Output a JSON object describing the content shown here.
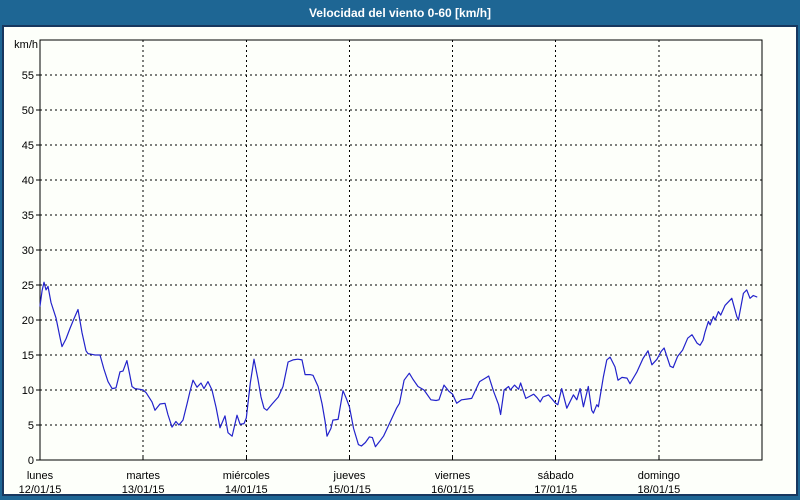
{
  "title": "Velocidad del viento 0-60 [km/h]",
  "colors": {
    "titlebar_bg": "#1e6694",
    "border": "#17375e",
    "panel_bg": "#fdfffa",
    "line": "#2323cb",
    "grid": "#000000",
    "text": "#000000"
  },
  "chart_data": {
    "type": "line",
    "title": "Velocidad del viento 0-60 [km/h]",
    "ylabel": "km/h",
    "xlabel": "",
    "ylim": [
      0,
      60
    ],
    "yticks": [
      0,
      5,
      10,
      15,
      20,
      25,
      30,
      35,
      40,
      45,
      50,
      55
    ],
    "grid": true,
    "legend": "none",
    "x_days": [
      {
        "name": "lunes",
        "date": "12/01/15"
      },
      {
        "name": "martes",
        "date": "13/01/15"
      },
      {
        "name": "miércoles",
        "date": "14/01/15"
      },
      {
        "name": "jueves",
        "date": "15/01/15"
      },
      {
        "name": "viernes",
        "date": "16/01/15"
      },
      {
        "name": "sábado",
        "date": "17/01/15"
      },
      {
        "name": "domingo",
        "date": "18/01/15"
      }
    ],
    "series": [
      {
        "name": "wind_speed_kmh",
        "color": "#2323cb",
        "points": [
          [
            0.0,
            22.0
          ],
          [
            0.02,
            24.2
          ],
          [
            0.039,
            25.4
          ],
          [
            0.058,
            24.3
          ],
          [
            0.078,
            24.8
          ],
          [
            0.107,
            22.5
          ],
          [
            0.155,
            20.3
          ],
          [
            0.194,
            17.5
          ],
          [
            0.213,
            16.2
          ],
          [
            0.252,
            17.3
          ],
          [
            0.291,
            18.8
          ],
          [
            0.33,
            20.2
          ],
          [
            0.368,
            21.5
          ],
          [
            0.407,
            18.2
          ],
          [
            0.446,
            15.6
          ],
          [
            0.465,
            15.2
          ],
          [
            0.5,
            15.1
          ],
          [
            0.533,
            15.0
          ],
          [
            0.582,
            15.0
          ],
          [
            0.62,
            13.0
          ],
          [
            0.659,
            11.2
          ],
          [
            0.699,
            10.2
          ],
          [
            0.737,
            10.3
          ],
          [
            0.776,
            12.6
          ],
          [
            0.805,
            12.7
          ],
          [
            0.843,
            14.2
          ],
          [
            0.873,
            12.0
          ],
          [
            0.892,
            10.5
          ],
          [
            0.92,
            10.2
          ],
          [
            0.97,
            10.1
          ],
          [
            1.0,
            10.0
          ],
          [
            1.03,
            9.6
          ],
          [
            1.086,
            8.3
          ],
          [
            1.115,
            7.1
          ],
          [
            1.163,
            8.0
          ],
          [
            1.212,
            8.1
          ],
          [
            1.24,
            6.5
          ],
          [
            1.28,
            4.7
          ],
          [
            1.318,
            5.5
          ],
          [
            1.347,
            5.0
          ],
          [
            1.386,
            5.7
          ],
          [
            1.425,
            8.0
          ],
          [
            1.454,
            9.8
          ],
          [
            1.483,
            11.4
          ],
          [
            1.522,
            10.4
          ],
          [
            1.561,
            11.0
          ],
          [
            1.59,
            10.2
          ],
          [
            1.629,
            11.2
          ],
          [
            1.668,
            10.0
          ],
          [
            1.707,
            7.5
          ],
          [
            1.745,
            4.6
          ],
          [
            1.794,
            6.3
          ],
          [
            1.823,
            3.9
          ],
          [
            1.862,
            3.4
          ],
          [
            1.91,
            6.4
          ],
          [
            1.94,
            5.1
          ],
          [
            1.978,
            5.2
          ],
          [
            2.0,
            6.0
          ],
          [
            2.039,
            11.0
          ],
          [
            2.075,
            14.4
          ],
          [
            2.114,
            11.5
          ],
          [
            2.143,
            9.0
          ],
          [
            2.172,
            7.4
          ],
          [
            2.2,
            7.1
          ],
          [
            2.25,
            8.0
          ],
          [
            2.31,
            9.0
          ],
          [
            2.356,
            10.5
          ],
          [
            2.405,
            14.0
          ],
          [
            2.453,
            14.3
          ],
          [
            2.5,
            14.4
          ],
          [
            2.54,
            14.3
          ],
          [
            2.57,
            12.2
          ],
          [
            2.618,
            12.2
          ],
          [
            2.647,
            12.1
          ],
          [
            2.696,
            10.5
          ],
          [
            2.735,
            8.0
          ],
          [
            2.764,
            5.5
          ],
          [
            2.783,
            3.4
          ],
          [
            2.82,
            4.5
          ],
          [
            2.84,
            5.7
          ],
          [
            2.89,
            5.8
          ],
          [
            2.938,
            9.9
          ],
          [
            2.97,
            8.8
          ],
          [
            3.0,
            7.6
          ],
          [
            3.04,
            4.5
          ],
          [
            3.087,
            2.2
          ],
          [
            3.116,
            2.0
          ],
          [
            3.155,
            2.5
          ],
          [
            3.194,
            3.3
          ],
          [
            3.223,
            3.2
          ],
          [
            3.252,
            1.9
          ],
          [
            3.29,
            2.6
          ],
          [
            3.33,
            3.4
          ],
          [
            3.388,
            5.2
          ],
          [
            3.456,
            7.4
          ],
          [
            3.485,
            8.1
          ],
          [
            3.53,
            11.4
          ],
          [
            3.58,
            12.4
          ],
          [
            3.617,
            11.5
          ],
          [
            3.665,
            10.5
          ],
          [
            3.723,
            10.0
          ],
          [
            3.79,
            8.6
          ],
          [
            3.84,
            8.5
          ],
          [
            3.868,
            8.6
          ],
          [
            3.917,
            10.7
          ],
          [
            3.965,
            9.8
          ],
          [
            4.0,
            9.4
          ],
          [
            4.04,
            8.1
          ],
          [
            4.088,
            8.6
          ],
          [
            4.136,
            8.7
          ],
          [
            4.185,
            8.8
          ],
          [
            4.262,
            11.2
          ],
          [
            4.33,
            11.8
          ],
          [
            4.35,
            12.0
          ],
          [
            4.398,
            9.8
          ],
          [
            4.446,
            7.9
          ],
          [
            4.466,
            6.5
          ],
          [
            4.5,
            10.0
          ],
          [
            4.543,
            10.5
          ],
          [
            4.56,
            10.0
          ],
          [
            4.6,
            10.7
          ],
          [
            4.64,
            10.1
          ],
          [
            4.66,
            11.0
          ],
          [
            4.71,
            8.8
          ],
          [
            4.76,
            9.2
          ],
          [
            4.787,
            9.4
          ],
          [
            4.82,
            8.9
          ],
          [
            4.85,
            8.3
          ],
          [
            4.877,
            9.0
          ],
          [
            4.93,
            9.3
          ],
          [
            5.0,
            8.1
          ],
          [
            5.02,
            7.9
          ],
          [
            5.058,
            10.2
          ],
          [
            5.107,
            7.4
          ],
          [
            5.171,
            9.3
          ],
          [
            5.204,
            8.6
          ],
          [
            5.236,
            10.2
          ],
          [
            5.268,
            7.6
          ],
          [
            5.316,
            10.5
          ],
          [
            5.349,
            7.1
          ],
          [
            5.365,
            6.7
          ],
          [
            5.398,
            7.9
          ],
          [
            5.414,
            7.6
          ],
          [
            5.462,
            11.9
          ],
          [
            5.495,
            14.3
          ],
          [
            5.527,
            14.7
          ],
          [
            5.575,
            13.3
          ],
          [
            5.604,
            11.4
          ],
          [
            5.643,
            11.8
          ],
          [
            5.691,
            11.7
          ],
          [
            5.72,
            10.9
          ],
          [
            5.788,
            12.6
          ],
          [
            5.846,
            14.5
          ],
          [
            5.895,
            15.6
          ],
          [
            5.933,
            13.6
          ],
          [
            5.982,
            14.4
          ],
          [
            6.022,
            15.5
          ],
          [
            6.051,
            16.0
          ],
          [
            6.109,
            13.4
          ],
          [
            6.138,
            13.2
          ],
          [
            6.182,
            14.8
          ],
          [
            6.23,
            15.7
          ],
          [
            6.28,
            17.4
          ],
          [
            6.321,
            17.9
          ],
          [
            6.37,
            16.7
          ],
          [
            6.4,
            16.4
          ],
          [
            6.428,
            17.1
          ],
          [
            6.448,
            18.3
          ],
          [
            6.48,
            19.8
          ],
          [
            6.497,
            19.3
          ],
          [
            6.529,
            20.5
          ],
          [
            6.545,
            20.0
          ],
          [
            6.577,
            21.2
          ],
          [
            6.6,
            20.7
          ],
          [
            6.642,
            22.1
          ],
          [
            6.707,
            23.1
          ],
          [
            6.756,
            20.5
          ],
          [
            6.771,
            20.0
          ],
          [
            6.82,
            23.8
          ],
          [
            6.852,
            24.3
          ],
          [
            6.884,
            23.1
          ],
          [
            6.916,
            23.5
          ],
          [
            6.95,
            23.3
          ]
        ]
      }
    ]
  }
}
